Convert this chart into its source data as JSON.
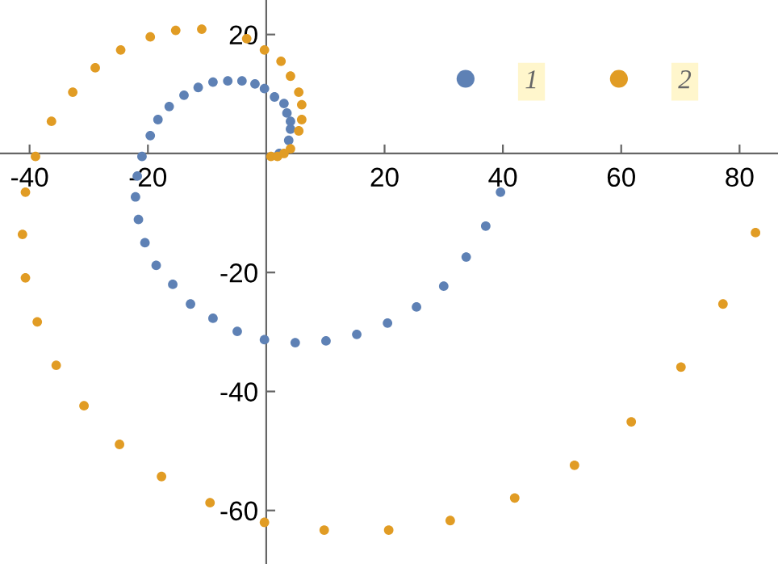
{
  "chart_data": {
    "type": "scatter",
    "xlim": [
      -45,
      86.5
    ],
    "ylim": [
      -69,
      25.8
    ],
    "xticks": [
      -40,
      -20,
      20,
      40,
      60,
      80
    ],
    "yticks": [
      -60,
      -40,
      -20,
      20
    ],
    "grid": false,
    "legend": "top right",
    "marker": "circle",
    "series": [
      {
        "name": "1",
        "color": "#5e81b5",
        "x": [
          null,
          null,
          2.2,
          null,
          3.8,
          4.1,
          4.1,
          3.5,
          3.0,
          1.4,
          -0.3,
          -1.9,
          -4.1,
          -6.5,
          -9.0,
          -11.5,
          -13.9,
          -16.4,
          -18.3,
          -19.6,
          -21.0,
          -21.8,
          -22.1,
          -21.6,
          -20.5,
          -18.6,
          -15.8,
          -12.8,
          -9.0,
          -4.9,
          -0.3,
          4.9,
          10.1,
          15.3,
          20.5,
          25.4,
          30.0,
          33.8,
          37.1,
          39.6
        ],
        "values": [
          null,
          null,
          0,
          null,
          2.2,
          4.1,
          5.4,
          6.8,
          8.4,
          9.5,
          10.9,
          11.7,
          12.2,
          12.2,
          12.0,
          11.1,
          9.8,
          7.9,
          5.7,
          3.0,
          -0.5,
          -3.8,
          -7.3,
          -11.1,
          -15.0,
          -18.8,
          -22.0,
          -25.3,
          -27.7,
          -29.9,
          -31.3,
          -31.8,
          -31.5,
          -30.4,
          -28.5,
          -25.8,
          -22.3,
          -17.4,
          -12.2,
          -6.5
        ]
      },
      {
        "name": "2",
        "color": "#e19c24",
        "x": [
          0.8,
          1.9,
          3.0,
          4.1,
          5.5,
          6.0,
          6.0,
          5.5,
          4.1,
          2.5,
          -0.3,
          -3.3,
          -10.9,
          -15.3,
          -19.6,
          -24.6,
          -28.9,
          -32.7,
          -36.3,
          -39.0,
          -40.7,
          -41.2,
          -40.7,
          -38.7,
          -35.5,
          -30.8,
          -24.8,
          -17.7,
          -9.5,
          -0.3,
          9.8,
          20.7,
          31.1,
          42.0,
          52.1,
          61.7,
          70.1,
          77.2,
          82.7
        ],
        "values": [
          -0.5,
          -0.5,
          0,
          0.8,
          3.8,
          5.7,
          8.2,
          10.3,
          13.0,
          15.5,
          17.4,
          19.3,
          20.9,
          20.7,
          19.6,
          17.4,
          14.4,
          10.3,
          5.4,
          -0.5,
          -6.5,
          -13.6,
          -20.9,
          -28.3,
          -35.6,
          -42.4,
          -48.9,
          -54.3,
          -58.7,
          -62.0,
          -63.3,
          -63.3,
          -61.7,
          -57.9,
          -52.4,
          -45.1,
          -35.9,
          -25.3,
          -13.3
        ]
      }
    ]
  }
}
